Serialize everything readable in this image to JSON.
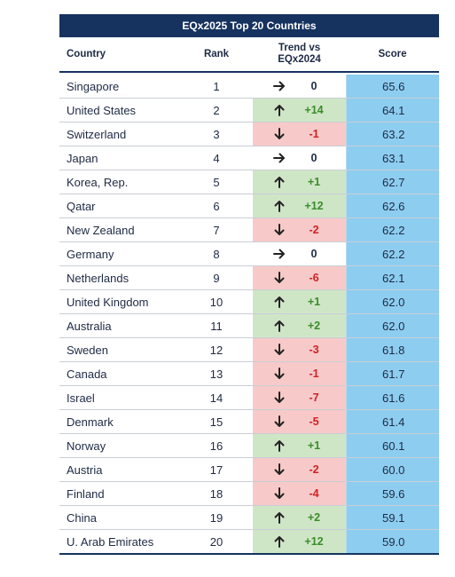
{
  "title": "EQx2025 Top 20 Countries",
  "headers": {
    "country": "Country",
    "rank": "Rank",
    "trend_line1": "Trend vs",
    "trend_line2": "EQx2024",
    "score": "Score"
  },
  "colors": {
    "header_bg": "#16335f",
    "score_bg": "#8dcdf0",
    "up_bg": "#cfe6c6",
    "down_bg": "#f7c9c9",
    "up_text": "#3a8c2a",
    "down_text": "#d02323"
  },
  "rows": [
    {
      "country": "Singapore",
      "rank": "1",
      "dir": "flat",
      "trend": "0",
      "score": "65.6"
    },
    {
      "country": "United States",
      "rank": "2",
      "dir": "up",
      "trend": "+14",
      "score": "64.1"
    },
    {
      "country": "Switzerland",
      "rank": "3",
      "dir": "down",
      "trend": "-1",
      "score": "63.2"
    },
    {
      "country": "Japan",
      "rank": "4",
      "dir": "flat",
      "trend": "0",
      "score": "63.1"
    },
    {
      "country": "Korea, Rep.",
      "rank": "5",
      "dir": "up",
      "trend": "+1",
      "score": "62.7"
    },
    {
      "country": "Qatar",
      "rank": "6",
      "dir": "up",
      "trend": "+12",
      "score": "62.6"
    },
    {
      "country": "New Zealand",
      "rank": "7",
      "dir": "down",
      "trend": "-2",
      "score": "62.2"
    },
    {
      "country": "Germany",
      "rank": "8",
      "dir": "flat",
      "trend": "0",
      "score": "62.2"
    },
    {
      "country": "Netherlands",
      "rank": "9",
      "dir": "down",
      "trend": "-6",
      "score": "62.1"
    },
    {
      "country": "United Kingdom",
      "rank": "10",
      "dir": "up",
      "trend": "+1",
      "score": "62.0"
    },
    {
      "country": "Australia",
      "rank": "11",
      "dir": "up",
      "trend": "+2",
      "score": "62.0"
    },
    {
      "country": "Sweden",
      "rank": "12",
      "dir": "down",
      "trend": "-3",
      "score": "61.8"
    },
    {
      "country": "Canada",
      "rank": "13",
      "dir": "down",
      "trend": "-1",
      "score": "61.7"
    },
    {
      "country": "Israel",
      "rank": "14",
      "dir": "down",
      "trend": "-7",
      "score": "61.6"
    },
    {
      "country": "Denmark",
      "rank": "15",
      "dir": "down",
      "trend": "-5",
      "score": "61.4"
    },
    {
      "country": "Norway",
      "rank": "16",
      "dir": "up",
      "trend": "+1",
      "score": "60.1"
    },
    {
      "country": "Austria",
      "rank": "17",
      "dir": "down",
      "trend": "-2",
      "score": "60.0"
    },
    {
      "country": "Finland",
      "rank": "18",
      "dir": "down",
      "trend": "-4",
      "score": "59.6"
    },
    {
      "country": "China",
      "rank": "19",
      "dir": "up",
      "trend": "+2",
      "score": "59.1"
    },
    {
      "country": "U. Arab Emirates",
      "rank": "20",
      "dir": "up",
      "trend": "+12",
      "score": "59.0"
    }
  ]
}
